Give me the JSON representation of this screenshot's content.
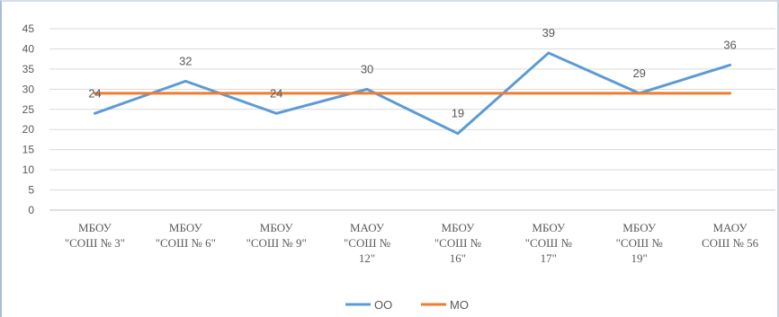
{
  "chart_data": {
    "type": "line",
    "categories": [
      [
        "МБОУ",
        "\"СОШ № 3\""
      ],
      [
        "МБОУ",
        "\"СОШ № 6\""
      ],
      [
        "МБОУ",
        "\"СОШ № 9\""
      ],
      [
        "МАОУ",
        "\"СОШ №",
        "12\""
      ],
      [
        "МБОУ",
        "\"СОШ №",
        "16\""
      ],
      [
        "МБОУ",
        "\"СОШ №",
        "17\""
      ],
      [
        "МБОУ",
        "\"СОШ №",
        "19\""
      ],
      [
        "МАОУ",
        "СОШ № 56"
      ]
    ],
    "series": [
      {
        "name": "ОО",
        "values": [
          24,
          32,
          24,
          30,
          19,
          39,
          29,
          36
        ],
        "color": "#5b9bd5",
        "data_labels": true
      },
      {
        "name": "МО",
        "values": [
          29,
          29,
          29,
          29,
          29,
          29,
          29,
          29
        ],
        "color": "#ed7d31",
        "data_labels": false
      }
    ],
    "ylim": [
      0,
      45
    ],
    "yticks": [
      0,
      5,
      10,
      15,
      20,
      25,
      30,
      35,
      40,
      45
    ],
    "grid": true,
    "legend_position": "bottom",
    "title": "",
    "xlabel": "",
    "ylabel": ""
  }
}
